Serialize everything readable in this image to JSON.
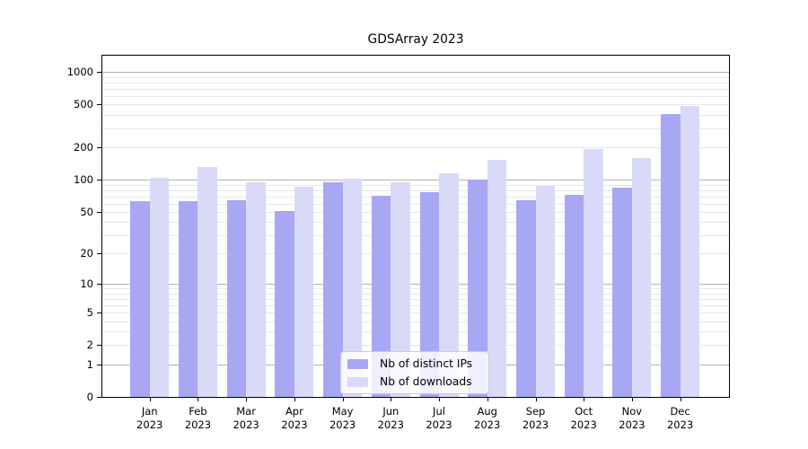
{
  "chart_data": {
    "type": "bar",
    "title": "GDSArray 2023",
    "categories": [
      "Jan",
      "Feb",
      "Mar",
      "Apr",
      "May",
      "Jun",
      "Jul",
      "Aug",
      "Sep",
      "Oct",
      "Nov",
      "Dec"
    ],
    "year_label": "2023",
    "series": [
      {
        "name": "Nb of distinct IPs",
        "color": "#a7a7f3",
        "values": [
          63,
          63,
          64,
          51,
          94,
          71,
          76,
          100,
          64,
          72,
          85,
          410
        ]
      },
      {
        "name": "Nb of downloads",
        "color": "#d9d9f8",
        "values": [
          105,
          131,
          94,
          86,
          102,
          94,
          114,
          152,
          88,
          192,
          160,
          486
        ]
      }
    ],
    "y_scale": "log10(1+x)",
    "y_ticks": [
      0,
      1,
      2,
      5,
      10,
      20,
      50,
      100,
      200,
      500,
      1000
    ],
    "ylim": [
      0,
      1410
    ],
    "grid": {
      "major_color": "#b3b3b3",
      "minor_color": "#e8e8e8",
      "major_at": "decades",
      "minor_at": "2-9 per decade"
    },
    "legend_position": "lower center",
    "xlabel": "",
    "ylabel": ""
  }
}
